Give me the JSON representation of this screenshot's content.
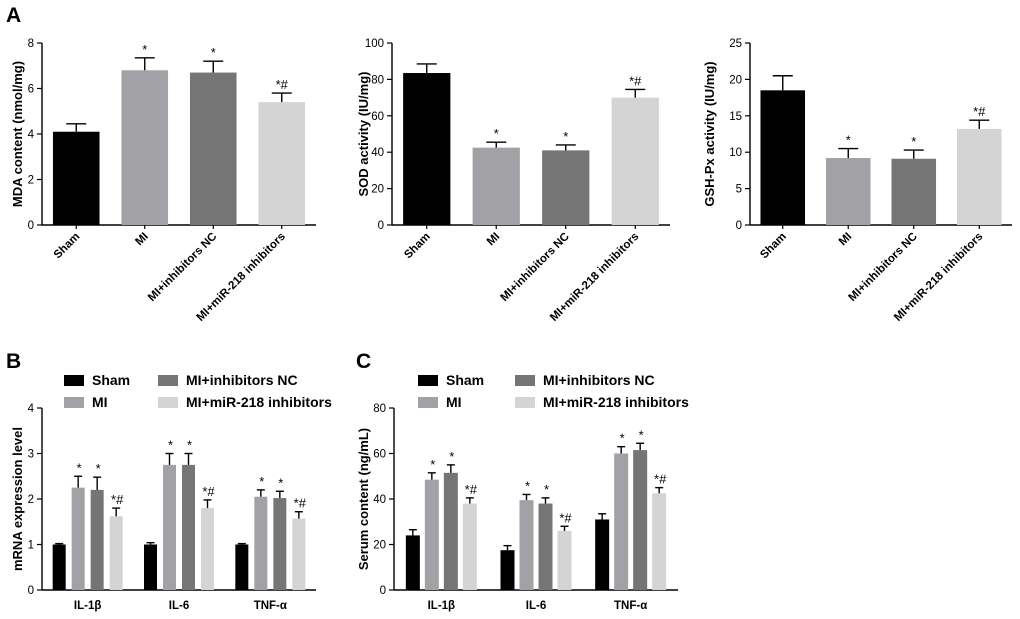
{
  "panel_labels": {
    "a": "A",
    "b": "B",
    "c": "C"
  },
  "colors": {
    "Sham": "#000000",
    "MI": "#a2a2a6",
    "MI+inhibitors NC": "#757575",
    "MI+miR-218 inhibitors": "#d4d4d4"
  },
  "chart_data": [
    {
      "id": "mda",
      "type": "bar",
      "ylabel": "MDA content (nmol/mg)",
      "ylim": [
        0,
        8
      ],
      "yticks": [
        0,
        2,
        4,
        6,
        8
      ],
      "categories": [
        "Sham",
        "MI",
        "MI+inhibitors NC",
        "MI+miR-218 inhibitors"
      ],
      "values": [
        4.1,
        6.8,
        6.7,
        5.4
      ],
      "errors": [
        0.35,
        0.55,
        0.5,
        0.4
      ],
      "annotations": [
        "",
        "*",
        "*",
        "*#"
      ]
    },
    {
      "id": "sod",
      "type": "bar",
      "ylabel": "SOD activity (IU/mg)",
      "ylim": [
        0,
        100
      ],
      "yticks": [
        0,
        20,
        40,
        60,
        80,
        100
      ],
      "categories": [
        "Sham",
        "MI",
        "MI+inhibitors NC",
        "MI+miR-218 inhibitors"
      ],
      "values": [
        83.5,
        42.5,
        41.0,
        70.0
      ],
      "errors": [
        5.0,
        3.0,
        3.0,
        4.5
      ],
      "annotations": [
        "",
        "*",
        "*",
        "*#"
      ]
    },
    {
      "id": "gsh",
      "type": "bar",
      "ylabel": "GSH-Px activity (IU/mg)",
      "ylim": [
        0,
        25
      ],
      "yticks": [
        0,
        5,
        10,
        15,
        20,
        25
      ],
      "categories": [
        "Sham",
        "MI",
        "MI+inhibitors NC",
        "MI+miR-218 inhibitors"
      ],
      "values": [
        18.5,
        9.2,
        9.1,
        13.2
      ],
      "errors": [
        2.0,
        1.3,
        1.2,
        1.2
      ],
      "annotations": [
        "",
        "*",
        "*",
        "*#"
      ]
    },
    {
      "id": "mrna",
      "type": "bar",
      "ylabel": "mRNA expression level",
      "ylim": [
        0,
        4
      ],
      "yticks": [
        0,
        1,
        2,
        3,
        4
      ],
      "categories": [
        "IL-1β",
        "IL-6",
        "TNF-α"
      ],
      "series": [
        {
          "name": "Sham",
          "values": [
            1.0,
            1.0,
            1.0
          ],
          "errors": [
            0.02,
            0.04,
            0.02
          ],
          "annotations": [
            "",
            "",
            ""
          ]
        },
        {
          "name": "MI",
          "values": [
            2.25,
            2.75,
            2.05
          ],
          "errors": [
            0.25,
            0.25,
            0.15
          ],
          "annotations": [
            "*",
            "*",
            "*"
          ]
        },
        {
          "name": "MI+inhibitors NC",
          "values": [
            2.2,
            2.75,
            2.02
          ],
          "errors": [
            0.28,
            0.25,
            0.15
          ],
          "annotations": [
            "*",
            "*",
            "*"
          ]
        },
        {
          "name": "MI+miR-218 inhibitors",
          "values": [
            1.62,
            1.8,
            1.57
          ],
          "errors": [
            0.18,
            0.18,
            0.15
          ],
          "annotations": [
            "*#",
            "*#",
            "*#"
          ]
        }
      ],
      "legend": [
        "Sham",
        "MI",
        "MI+inhibitors NC",
        "MI+miR-218 inhibitors"
      ]
    },
    {
      "id": "serum",
      "type": "bar",
      "ylabel": "Serum content (ng/mL)",
      "ylim": [
        0,
        80
      ],
      "yticks": [
        0,
        20,
        40,
        60,
        80
      ],
      "categories": [
        "IL-1β",
        "IL-6",
        "TNF-α"
      ],
      "series": [
        {
          "name": "Sham",
          "values": [
            24.0,
            17.5,
            31.0
          ],
          "errors": [
            2.5,
            2.0,
            2.5
          ],
          "annotations": [
            "",
            "",
            ""
          ]
        },
        {
          "name": "MI",
          "values": [
            48.5,
            39.5,
            60.0
          ],
          "errors": [
            3.0,
            2.5,
            3.0
          ],
          "annotations": [
            "*",
            "*",
            "*"
          ]
        },
        {
          "name": "MI+inhibitors NC",
          "values": [
            51.5,
            38.0,
            61.5
          ],
          "errors": [
            3.5,
            2.5,
            3.0
          ],
          "annotations": [
            "*",
            "*",
            "*"
          ]
        },
        {
          "name": "MI+miR-218 inhibitors",
          "values": [
            38.0,
            26.0,
            42.5
          ],
          "errors": [
            2.5,
            2.0,
            2.5
          ],
          "annotations": [
            "*#",
            "*#",
            "*#"
          ]
        }
      ],
      "legend": [
        "Sham",
        "MI",
        "MI+inhibitors NC",
        "MI+miR-218 inhibitors"
      ]
    }
  ]
}
